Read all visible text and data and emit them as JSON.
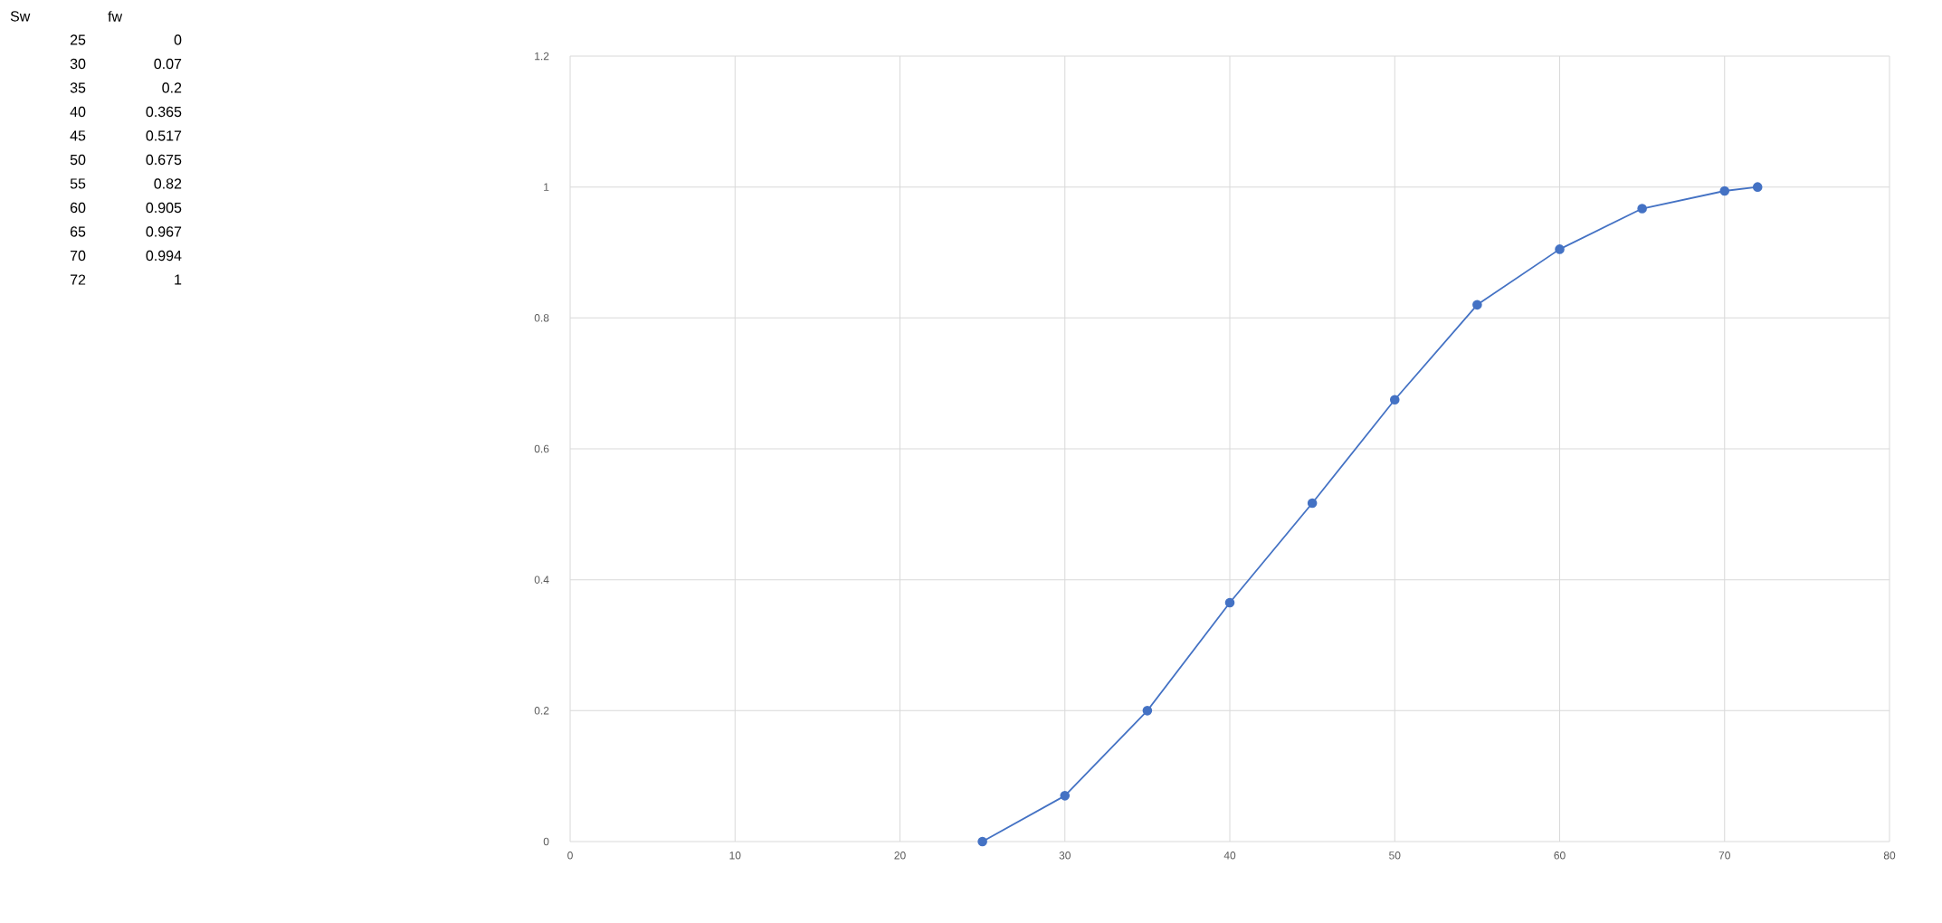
{
  "chart_data": {
    "type": "line",
    "x": [
      25,
      30,
      35,
      40,
      45,
      50,
      55,
      60,
      65,
      70,
      72
    ],
    "values": [
      0,
      0.07,
      0.2,
      0.365,
      0.517,
      0.675,
      0.82,
      0.905,
      0.967,
      0.994,
      1
    ],
    "color": "#4472c4",
    "marker": "circle",
    "grid": true,
    "xlim": [
      0,
      80
    ],
    "xticks": [
      0,
      10,
      20,
      30,
      40,
      50,
      60,
      70,
      80
    ],
    "ylim": [
      0,
      1.2
    ],
    "yticks": [
      0,
      0.2,
      0.4,
      0.6,
      0.8,
      1,
      1.2
    ],
    "annotations": [
      "Sw",
      "fw",
      "25",
      "0",
      "30",
      "0.07",
      "35",
      "0.2",
      "40",
      "0.365",
      "45",
      "0.517",
      "50",
      "0.675",
      "55",
      "0.82",
      "60",
      "0.905",
      "65",
      "0.967",
      "70",
      "0.994",
      "72",
      "1"
    ]
  }
}
